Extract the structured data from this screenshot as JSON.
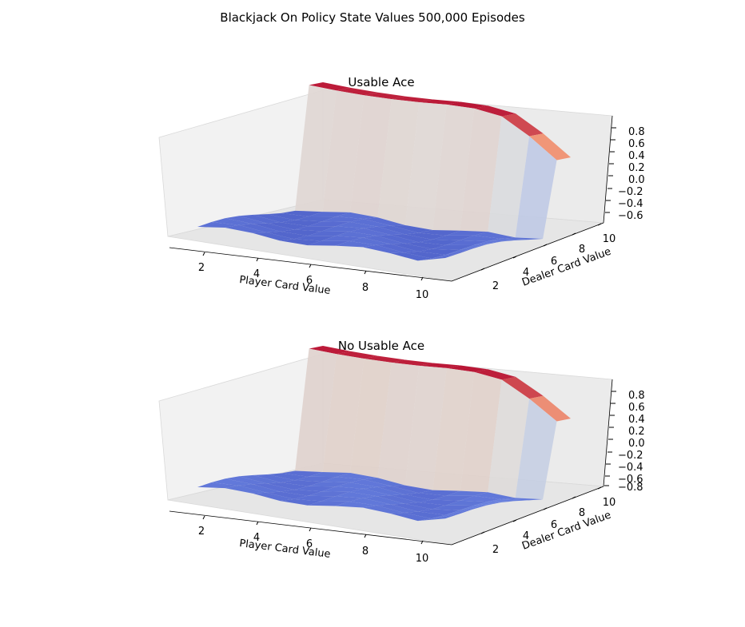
{
  "figure": {
    "title": "Blackjack On Policy State Values 500,000 Episodes"
  },
  "chart_data": [
    {
      "type": "surface3d",
      "title": "Usable Ace",
      "xlabel": "Player Card Value",
      "ylabel": "Dealer Card Value",
      "x_ticks": [
        2,
        4,
        6,
        8,
        10
      ],
      "y_ticks": [
        2,
        4,
        6,
        8,
        10
      ],
      "z_ticks": [
        "0.8",
        "0.6",
        "0.4",
        "0.2",
        "0.0",
        "−0.2",
        "−0.4",
        "−0.6"
      ],
      "zlim": [
        -0.7,
        0.9
      ],
      "grid": true,
      "colormap": "coolwarm",
      "surface": {
        "x": [
          1,
          2,
          3,
          4,
          5,
          6,
          7,
          8,
          9,
          10
        ],
        "y": [
          1,
          2,
          3,
          4,
          5,
          6,
          7,
          8,
          9,
          10
        ],
        "z_profile_along_y": [
          -0.6,
          -0.6,
          -0.6,
          -0.6,
          -0.6,
          -0.6,
          -0.6,
          -0.6,
          0.85,
          0.85
        ],
        "z_top_edge_along_x": [
          0.9,
          0.88,
          0.87,
          0.87,
          0.88,
          0.9,
          0.9,
          0.85,
          0.65,
          0.4
        ]
      }
    },
    {
      "type": "surface3d",
      "title": "No Usable Ace",
      "xlabel": "Player Card Value",
      "ylabel": "Dealer Card Value",
      "x_ticks": [
        2,
        4,
        6,
        8,
        10
      ],
      "y_ticks": [
        2,
        4,
        6,
        8,
        10
      ],
      "z_ticks": [
        "0.8",
        "0.6",
        "0.4",
        "0.2",
        "0.0",
        "−0.2",
        "−0.4",
        "−0.6",
        "−0.8"
      ],
      "zlim": [
        -0.8,
        0.9
      ],
      "grid": true,
      "colormap": "coolwarm",
      "surface": {
        "x": [
          1,
          2,
          3,
          4,
          5,
          6,
          7,
          8,
          9,
          10
        ],
        "y": [
          1,
          2,
          3,
          4,
          5,
          6,
          7,
          8,
          9,
          10
        ],
        "z_profile_along_y": [
          -0.65,
          -0.65,
          -0.65,
          -0.65,
          -0.65,
          -0.65,
          -0.65,
          -0.65,
          0.85,
          0.85
        ],
        "z_top_edge_along_x": [
          0.9,
          0.88,
          0.87,
          0.87,
          0.88,
          0.9,
          0.9,
          0.85,
          0.65,
          0.4
        ]
      }
    }
  ]
}
